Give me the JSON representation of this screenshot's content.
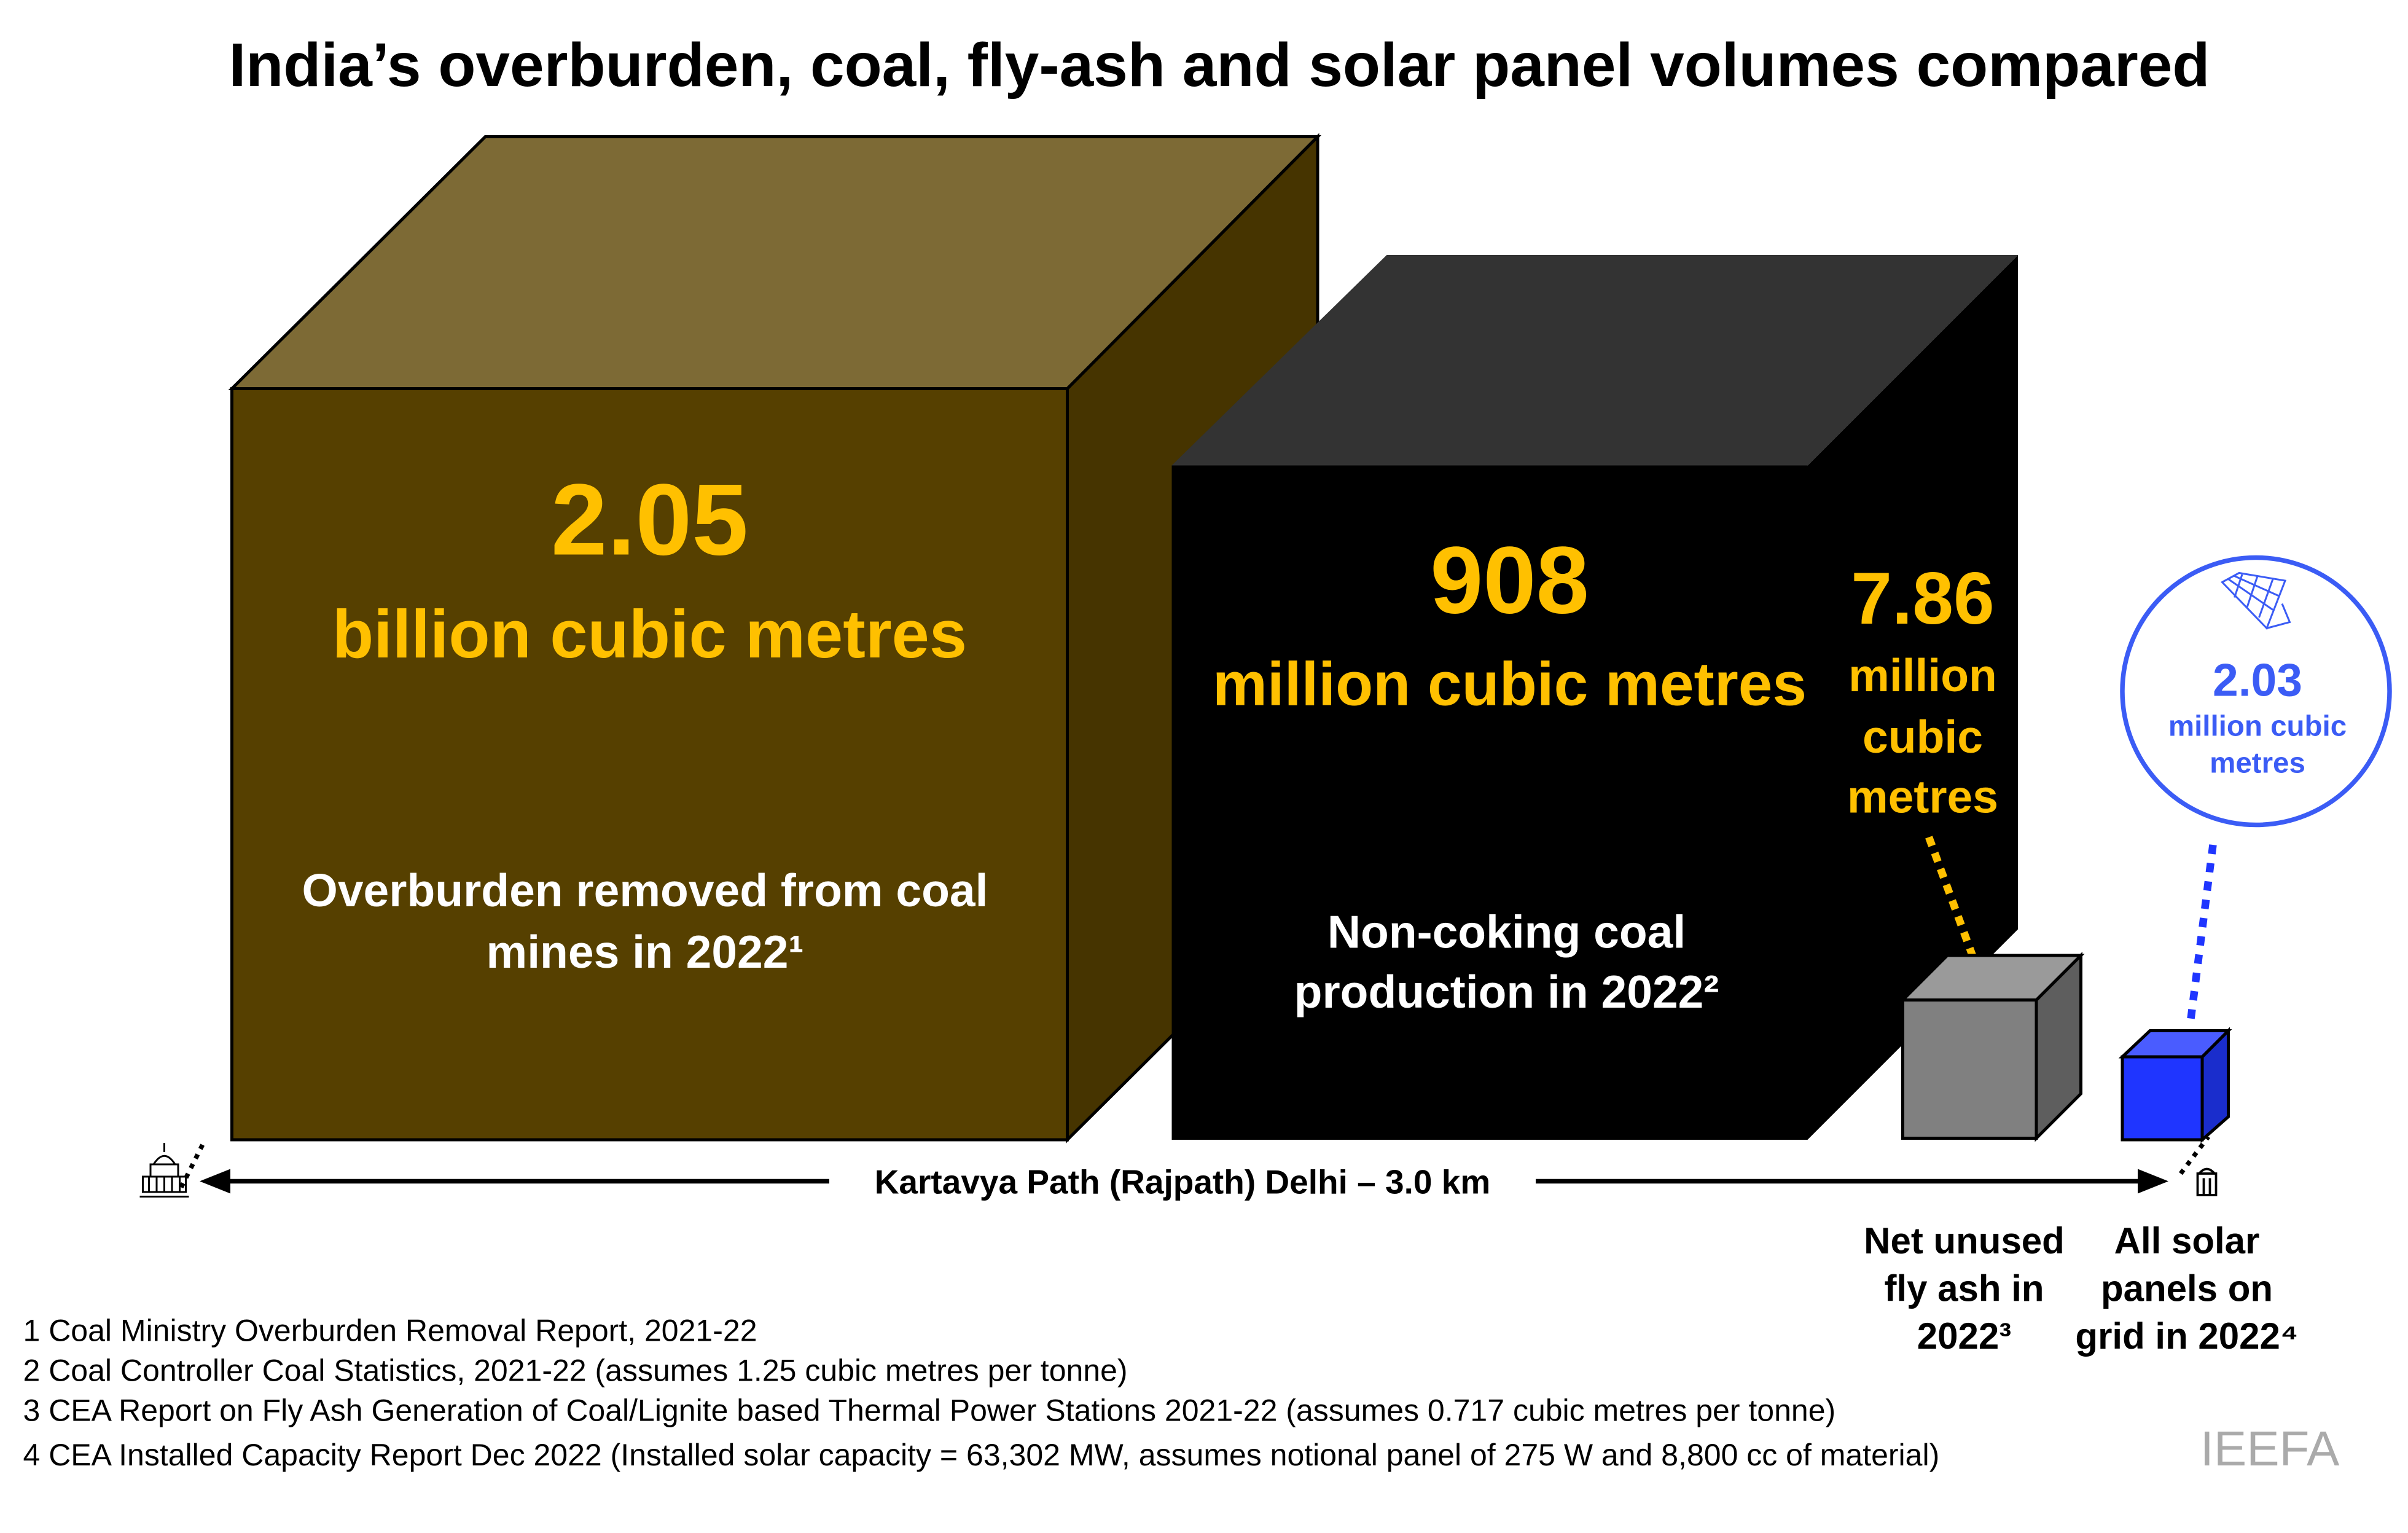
{
  "title": "India’s overburden, coal, fly-ash and solar panel volumes compared",
  "colors": {
    "accent_yellow": "#ffc000",
    "solar_blue": "#3b5cf5",
    "overburden": "#564000",
    "coal": "#000000",
    "fly_ash": "#808080"
  },
  "overburden": {
    "value": "2.05",
    "unit": "billion cubic metres",
    "label_line1": "Overburden removed from coal",
    "label_line2": "mines in 2022¹"
  },
  "coal": {
    "value": "908",
    "unit": "million cubic metres",
    "label_line1": "Non-coking coal",
    "label_line2": "production in 2022²"
  },
  "fly_ash": {
    "value": "7.86",
    "unit_line1": "million",
    "unit_line2": "cubic",
    "unit_line3": "metres",
    "label_line1": "Net unused",
    "label_line2": "fly ash in",
    "label_line3": "2022³"
  },
  "solar": {
    "value": "2.03",
    "unit_line1": "million cubic",
    "unit_line2": "metres",
    "label_line1": "All solar",
    "label_line2": "panels on",
    "label_line3": "grid in 2022⁴",
    "icon": "solar-panel-icon"
  },
  "scale": {
    "label": "Kartavya Path (Rajpath) Delhi – 3.0 km",
    "start_icon": "parliament-building-icon",
    "end_icon": "india-gate-icon"
  },
  "footnotes": [
    "1 Coal Ministry Overburden Removal Report, 2021-22",
    "2 Coal Controller Coal Statistics, 2021-22  (assumes 1.25 cubic metres per tonne)",
    "3 CEA Report on Fly Ash Generation of Coal/Lignite based Thermal Power Stations 2021-22 (assumes 0.717 cubic metres per tonne)",
    "4 CEA Installed Capacity Report Dec 2022 (Installed solar capacity = 63,302 MW, assumes notional panel of 275 W and 8,800 cc of material)"
  ],
  "logo": "IEEFA"
}
